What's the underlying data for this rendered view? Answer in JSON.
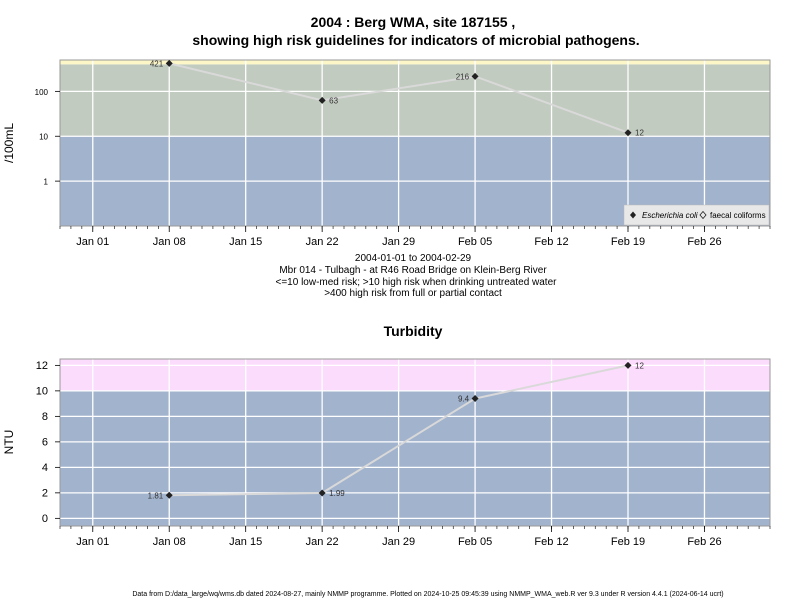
{
  "chart_data": [
    {
      "type": "line",
      "title_line1": "2004 : Berg WMA, site 187155 ,",
      "title_line2": "showing high risk guidelines for indicators of microbial pathogens.",
      "ylabel": "/100mL",
      "y_scale": "log",
      "ylim": [
        0.1,
        500
      ],
      "y_ticks": [
        1,
        10,
        100
      ],
      "y_tick_labels": [
        "1",
        "10",
        "100"
      ],
      "x_ticks": [
        "Jan 01",
        "Jan 08",
        "Jan 15",
        "Jan 22",
        "Jan 29",
        "Feb 05",
        "Feb 12",
        "Feb 19",
        "Feb 26"
      ],
      "x_range": [
        "2003-12-29",
        "2004-03-03"
      ],
      "bands": [
        {
          "from": 0.1,
          "to": 10,
          "color": "#a2b3cd"
        },
        {
          "from": 10,
          "to": 400,
          "color": "#c1cbbf"
        },
        {
          "from": 400,
          "to": 500,
          "color": "#fdf7c7"
        }
      ],
      "series": [
        {
          "name": "Escherichia coli",
          "x": [
            "2004-01-08",
            "2004-01-22",
            "2004-02-05",
            "2004-02-19"
          ],
          "y": [
            421,
            63,
            216,
            12
          ],
          "labels": [
            "421",
            "63",
            "216",
            "12"
          ]
        }
      ],
      "legend": {
        "placement": "bottom-right",
        "items": [
          {
            "label": "Escherichia coli",
            "marker": "filled-diamond",
            "italic": true
          },
          {
            "label": "faecal coliforms",
            "marker": "open-diamond",
            "italic": false
          }
        ]
      },
      "grid": true,
      "subtitle_lines": [
        "2004-01-01 to 2004-02-29",
        "Mbr 014 - Tulbagh - at R46 Road Bridge on Klein-Berg River",
        "<=10 low-med risk; >10 high risk when drinking untreated water",
        ">400 high risk from full or partial contact"
      ]
    },
    {
      "type": "line",
      "title": "Turbidity",
      "ylabel": "NTU",
      "ylim": [
        -0.6,
        12.5
      ],
      "y_ticks": [
        0,
        2,
        4,
        6,
        8,
        10,
        12
      ],
      "y_tick_labels": [
        "0",
        "2",
        "4",
        "6",
        "8",
        "10",
        "12"
      ],
      "x_ticks": [
        "Jan 01",
        "Jan 08",
        "Jan 15",
        "Jan 22",
        "Jan 29",
        "Feb 05",
        "Feb 12",
        "Feb 19",
        "Feb 26"
      ],
      "x_range": [
        "2003-12-29",
        "2004-03-03"
      ],
      "bands": [
        {
          "from": -0.6,
          "to": 10,
          "color": "#a2b3cd"
        },
        {
          "from": 10,
          "to": 12.5,
          "color": "#fcdcfc"
        }
      ],
      "series": [
        {
          "x": [
            "2004-01-08",
            "2004-01-22",
            "2004-02-05",
            "2004-02-19"
          ],
          "y": [
            1.81,
            1.99,
            9.4,
            12
          ],
          "labels": [
            "1.81",
            "1.99",
            "9.4",
            "12"
          ]
        }
      ],
      "grid": true
    }
  ],
  "footer": "Data from D:/data_large/wq/wms.db dated 2024-08-27, mainly NMMP programme. Plotted on 2024-10-25 09:45:39 using NMMP_WMA_web.R ver 9.3 under R version 4.4.1 (2024-06-14 ucrt)",
  "colors": {
    "grid": "#ffffff",
    "line": "#d9d9d9",
    "marker": "#222222",
    "frame": "#999999"
  }
}
